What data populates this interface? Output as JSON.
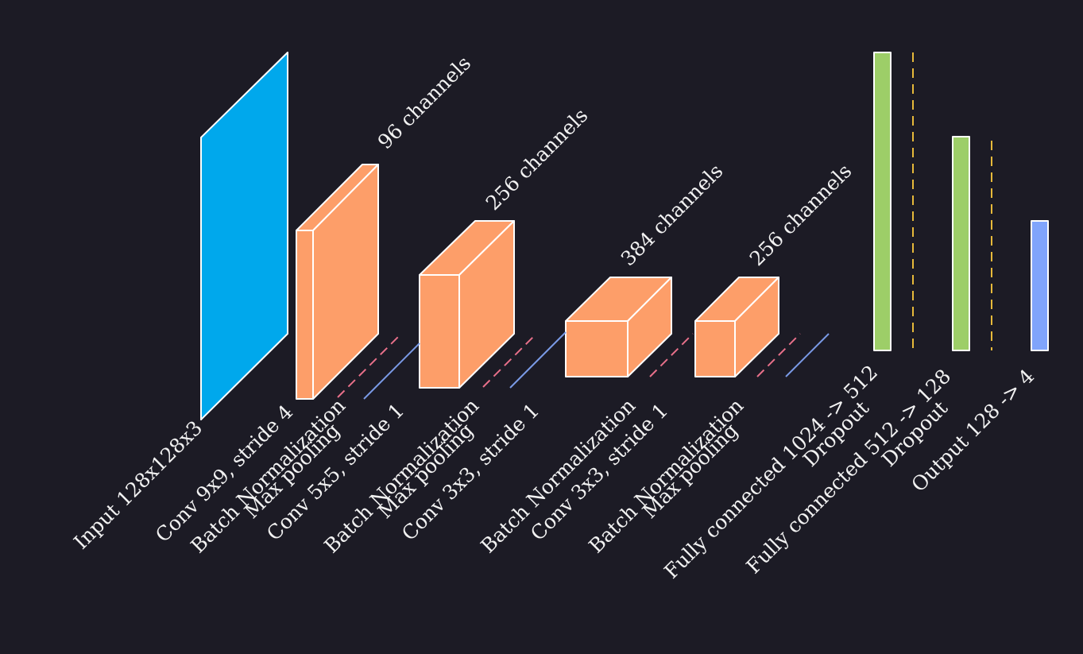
{
  "colors": {
    "background": "#1c1b25",
    "input": "#00a8ec",
    "conv": "#fd9e69",
    "fc": "#9dce68",
    "output": "#80a4fb",
    "batchnorm_line": "#e8708a",
    "pool_line": "#7a9ae6",
    "dropout_line": "#e7b93a"
  },
  "labels": {
    "input": "Input 128x128x3",
    "conv1": "Conv 9x9, stride 4",
    "bn1": "Batch Normalization",
    "pool1": "Max pooling",
    "conv2": "Conv 5x5, stride 1",
    "bn2": "Batch Normalization",
    "pool2": "Max pooling",
    "conv3": "Conv 3x3, stride 1",
    "bn3": "Batch Normalization",
    "conv4": "Conv 3x3, stride 1",
    "bn4": "Batch Normalization",
    "pool4": "Max pooling",
    "fc1": "Fully connected 1024 -> 512",
    "drop1": "Dropout",
    "fc2": "Fully connected 512 -> 128",
    "drop2": "Dropout",
    "out": "Output 128 -> 4"
  },
  "channels": {
    "c1": "96 channels",
    "c2": "256 channels",
    "c3": "384 channels",
    "c4": "256 channels"
  }
}
